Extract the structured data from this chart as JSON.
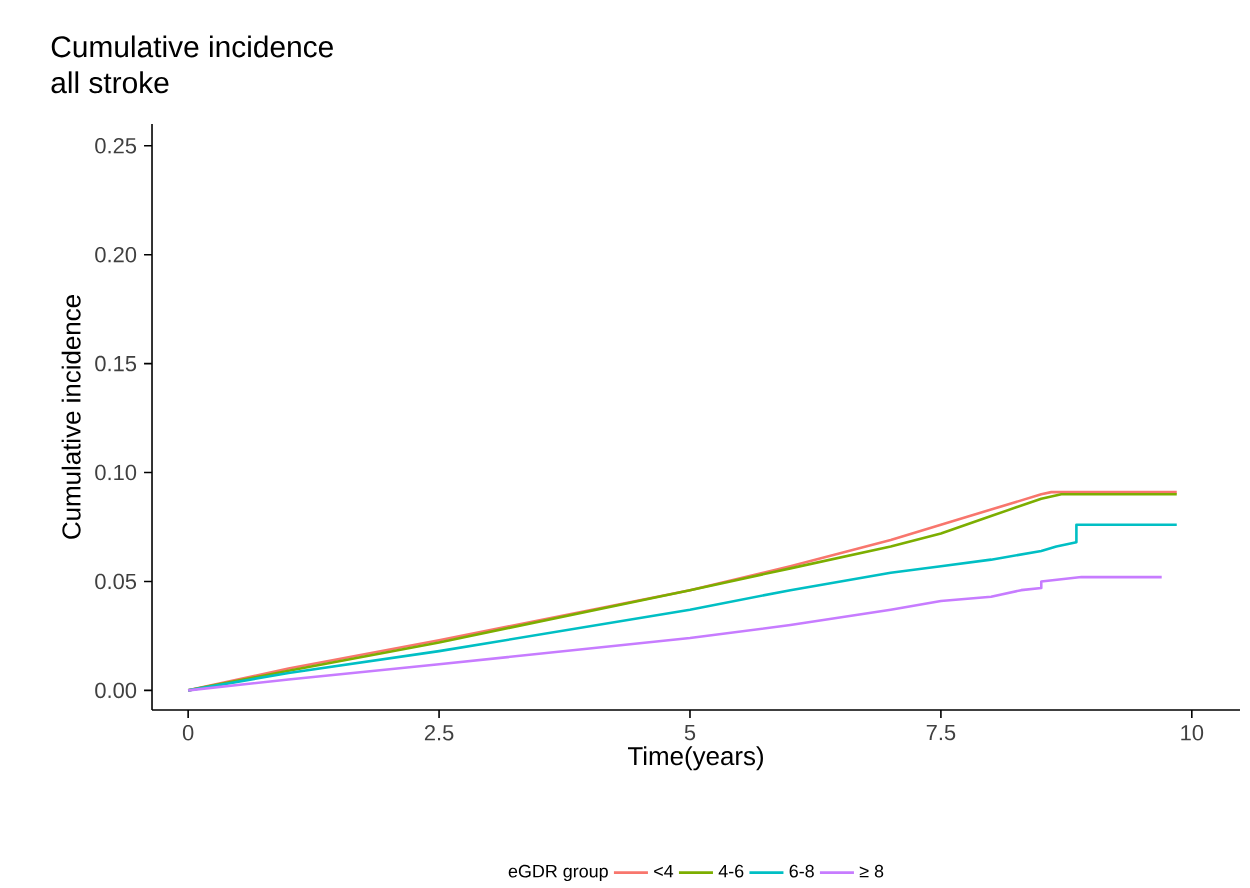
{
  "chart_data": {
    "type": "line",
    "title": "Cumulative incidence",
    "subtitle": "all stroke",
    "xlabel": "Time(years)",
    "ylabel": "Cumulative incidence",
    "legend_title": "eGDR group",
    "legend": "bottom",
    "grid": false,
    "xlim": [
      -0.36,
      10.48
    ],
    "ylim": [
      -0.009,
      0.26
    ],
    "xticks": [
      0,
      2.5,
      5,
      7.5,
      10
    ],
    "yticks": [
      {
        "value": 0,
        "label": "0.00"
      },
      {
        "value": 0.05,
        "label": "0.05"
      },
      {
        "value": 0.1,
        "label": "0.10"
      },
      {
        "value": 0.15,
        "label": "0.15"
      },
      {
        "value": 0.2,
        "label": "0.20"
      },
      {
        "value": 0.25,
        "label": "0.25"
      }
    ],
    "series": [
      {
        "name": "<4",
        "color": "#f8766d",
        "x": [
          0,
          1,
          2.5,
          5,
          6,
          7,
          7.5,
          8,
          8.5,
          8.6,
          9.85
        ],
        "values": [
          0,
          0.01,
          0.023,
          0.046,
          0.057,
          0.069,
          0.076,
          0.083,
          0.09,
          0.091,
          0.091
        ]
      },
      {
        "name": "4-6",
        "color": "#7cae00",
        "x": [
          0,
          1,
          2.5,
          5,
          6,
          7,
          7.5,
          8,
          8.5,
          8.7,
          9.85
        ],
        "values": [
          0,
          0.009,
          0.022,
          0.046,
          0.056,
          0.066,
          0.072,
          0.08,
          0.088,
          0.09,
          0.09
        ]
      },
      {
        "name": "6-8",
        "color": "#00bfc4",
        "x": [
          0,
          1,
          2.5,
          5,
          6,
          7,
          7.5,
          8,
          8.5,
          8.65,
          8.85,
          8.85,
          9.85
        ],
        "values": [
          0,
          0.008,
          0.018,
          0.037,
          0.046,
          0.054,
          0.057,
          0.06,
          0.064,
          0.066,
          0.068,
          0.076,
          0.076
        ]
      },
      {
        "name": "≥ 8",
        "color": "#c77cff",
        "x": [
          0,
          1,
          2.5,
          5,
          6,
          7,
          7.5,
          8,
          8.3,
          8.5,
          8.5,
          8.9,
          9.7
        ],
        "values": [
          0,
          0.005,
          0.012,
          0.024,
          0.03,
          0.037,
          0.041,
          0.043,
          0.046,
          0.047,
          0.05,
          0.052,
          0.052
        ]
      }
    ]
  }
}
